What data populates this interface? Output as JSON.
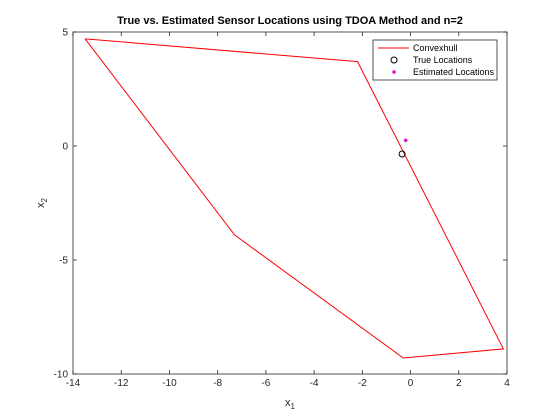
{
  "chart_data": {
    "type": "line",
    "title": "True vs. Estimated Sensor Locations using  TDOA  Method and n=2",
    "xlabel": {
      "base": "x",
      "sub": "1"
    },
    "ylabel": {
      "base": "x",
      "sub": "2"
    },
    "xlim": [
      -14,
      4
    ],
    "ylim": [
      -10,
      5
    ],
    "xticks": [
      -14,
      -12,
      -10,
      -8,
      -6,
      -4,
      -2,
      0,
      2,
      4
    ],
    "yticks": [
      -10,
      -5,
      0,
      5
    ],
    "grid": false,
    "legend_position": "top-right",
    "series": [
      {
        "name": "Convexhull",
        "kind": "line",
        "color": "#ff0000",
        "points": [
          [
            -13.5,
            4.7
          ],
          [
            -2.2,
            3.7
          ],
          [
            3.85,
            -8.9
          ],
          [
            -0.3,
            -9.3
          ],
          [
            -7.3,
            -3.9
          ],
          [
            -13.5,
            4.7
          ]
        ]
      },
      {
        "name": "True Locations",
        "kind": "marker-circle",
        "color": "#000000",
        "points": [
          [
            -0.35,
            -0.35
          ]
        ]
      },
      {
        "name": "Estimated Locations",
        "kind": "marker-star",
        "color": "#cc00cc",
        "points": [
          [
            -0.2,
            0.25
          ]
        ]
      }
    ]
  }
}
